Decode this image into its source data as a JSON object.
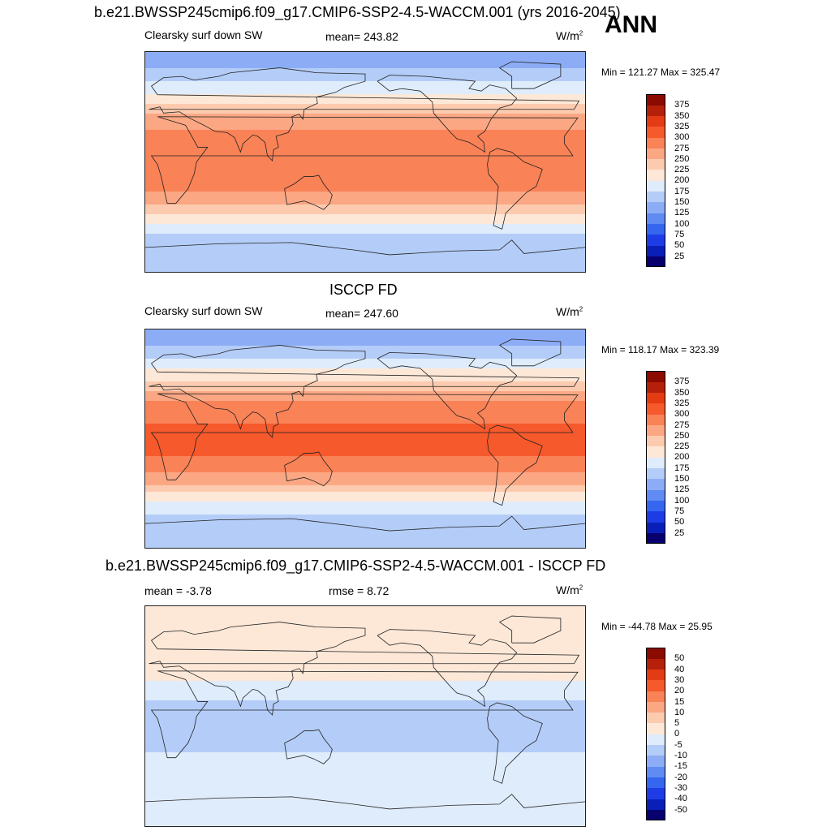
{
  "header": {
    "run_title": "b.e21.BWSSP245cmip6.f09_g17.CMIP6-SSP2-4.5-WACCM.001 (yrs 2016-2045)",
    "season": "ANN"
  },
  "panels": [
    {
      "name": "model",
      "variable": "Clearsky surf down SW",
      "mean": "mean= 243.82",
      "units": "W/m",
      "units_sup": "2",
      "minmax": "Min = 121.27 Max = 325.47"
    },
    {
      "name": "obs",
      "title": "ISCCP FD",
      "variable": "Clearsky surf down SW",
      "mean": "mean= 247.60",
      "units": "W/m",
      "units_sup": "2",
      "minmax": "Min = 118.17 Max = 323.39"
    },
    {
      "name": "diff",
      "title": "b.e21.BWSSP245cmip6.f09_g17.CMIP6-SSP2-4.5-WACCM.001 - ISCCP FD",
      "mean": "mean =  -3.78",
      "rmse": "rmse =   8.72",
      "units": "W/m",
      "units_sup": "2",
      "minmax": "Min = -44.78 Max =  25.95"
    }
  ],
  "chart_data": [
    {
      "type": "heatmap",
      "title": "Clearsky surf down SW",
      "units": "W/m2",
      "mean": 243.82,
      "min": 121.27,
      "max": 325.47,
      "levels": [
        25,
        50,
        75,
        100,
        125,
        150,
        175,
        200,
        225,
        250,
        275,
        300,
        325,
        350,
        375
      ],
      "colors": [
        "#08006e",
        "#0a1fb8",
        "#1e3ce6",
        "#3566f0",
        "#5f8bf2",
        "#8cadf5",
        "#b4cdf8",
        "#dfecfb",
        "#fde8d8",
        "#fccbaf",
        "#fba784",
        "#fa8257",
        "#f6592b",
        "#e33b14",
        "#b5200b",
        "#8b0b00"
      ],
      "band_profile": [
        {
          "lat": 80,
          "value": 140
        },
        {
          "lat": 65,
          "value": 175
        },
        {
          "lat": 50,
          "value": 215
        },
        {
          "lat": 35,
          "value": 260
        },
        {
          "lat": 20,
          "value": 290
        },
        {
          "lat": 0,
          "value": 295
        },
        {
          "lat": -20,
          "value": 285
        },
        {
          "lat": -35,
          "value": 250
        },
        {
          "lat": -50,
          "value": 200
        },
        {
          "lat": -65,
          "value": 160
        },
        {
          "lat": -80,
          "value": 150
        }
      ]
    },
    {
      "type": "heatmap",
      "title": "ISCCP FD",
      "units": "W/m2",
      "mean": 247.6,
      "min": 118.17,
      "max": 323.39,
      "levels": [
        25,
        50,
        75,
        100,
        125,
        150,
        175,
        200,
        225,
        250,
        275,
        300,
        325,
        350,
        375
      ],
      "colors": [
        "#08006e",
        "#0a1fb8",
        "#1e3ce6",
        "#3566f0",
        "#5f8bf2",
        "#8cadf5",
        "#b4cdf8",
        "#dfecfb",
        "#fde8d8",
        "#fccbaf",
        "#fba784",
        "#fa8257",
        "#f6592b",
        "#e33b14",
        "#b5200b",
        "#8b0b00"
      ],
      "band_profile": [
        {
          "lat": 80,
          "value": 145
        },
        {
          "lat": 65,
          "value": 180
        },
        {
          "lat": 50,
          "value": 220
        },
        {
          "lat": 35,
          "value": 265
        },
        {
          "lat": 20,
          "value": 295
        },
        {
          "lat": 0,
          "value": 310
        },
        {
          "lat": -20,
          "value": 295
        },
        {
          "lat": -35,
          "value": 260
        },
        {
          "lat": -50,
          "value": 205
        },
        {
          "lat": -65,
          "value": 165
        },
        {
          "lat": -80,
          "value": 155
        }
      ]
    },
    {
      "type": "heatmap",
      "title": "b.e21.BWSSP245cmip6.f09_g17.CMIP6-SSP2-4.5-WACCM.001 - ISCCP FD",
      "units": "W/m2",
      "mean": -3.78,
      "rmse": 8.72,
      "min": -44.78,
      "max": 25.95,
      "levels": [
        -50,
        -40,
        -30,
        -20,
        -15,
        -10,
        -5,
        0,
        5,
        10,
        15,
        20,
        30,
        40,
        50
      ],
      "colors": [
        "#08006e",
        "#0a1fb8",
        "#1e3ce6",
        "#3566f0",
        "#5f8bf2",
        "#8cadf5",
        "#b4cdf8",
        "#dfecfb",
        "#fde8d8",
        "#fccbaf",
        "#fba784",
        "#fa8257",
        "#f6592b",
        "#e33b14",
        "#b5200b",
        "#8b0b00"
      ],
      "band_profile": [
        {
          "lat": 80,
          "value": 3
        },
        {
          "lat": 60,
          "value": 4
        },
        {
          "lat": 40,
          "value": 2
        },
        {
          "lat": 20,
          "value": -2
        },
        {
          "lat": 5,
          "value": -8
        },
        {
          "lat": -10,
          "value": -6
        },
        {
          "lat": -30,
          "value": -5
        },
        {
          "lat": -50,
          "value": -3
        },
        {
          "lat": -70,
          "value": -2
        },
        {
          "lat": -85,
          "value": -1
        }
      ]
    }
  ]
}
